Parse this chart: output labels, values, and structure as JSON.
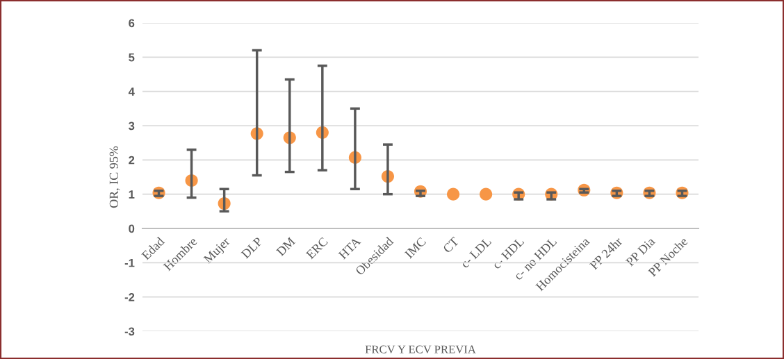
{
  "chart_data": {
    "type": "scatter",
    "xlabel": "FRCV Y ECV PREVIA",
    "ylabel": "OR, IC 95%",
    "categories": [
      "Edad",
      "Hombre",
      "Mujer",
      "DLP",
      "DM",
      "ERC",
      "HTA",
      "Obesidad",
      "IMC",
      "CT",
      "c- LDL",
      "c- HDL",
      "c- no HDL",
      "Homocisteina",
      "PP 24hr",
      "PP Dia",
      "PP Noche"
    ],
    "series": [
      {
        "color": "#f79646",
        "values": [
          1.04,
          1.4,
          0.73,
          2.77,
          2.65,
          2.8,
          2.07,
          1.52,
          1.08,
          1.0,
          1.0,
          1.0,
          1.0,
          1.12,
          1.04,
          1.04,
          1.04
        ],
        "errors": [
          [
            0.95,
            1.1
          ],
          [
            0.9,
            2.3
          ],
          [
            0.5,
            1.15
          ],
          [
            1.55,
            5.2
          ],
          [
            1.65,
            4.35
          ],
          [
            1.7,
            4.75
          ],
          [
            1.15,
            3.5
          ],
          [
            1.0,
            2.45
          ],
          [
            0.95,
            1.1
          ],
          null,
          null,
          [
            0.85,
            1.05
          ],
          [
            0.85,
            1.05
          ],
          [
            1.05,
            1.15
          ],
          [
            0.95,
            1.1
          ],
          [
            0.95,
            1.1
          ],
          [
            0.95,
            1.1
          ]
        ]
      }
    ],
    "ylim": [
      -3,
      6
    ],
    "yticks": [
      -3,
      -2,
      -1,
      0,
      1,
      2,
      3,
      4,
      5,
      6
    ],
    "grid": "y",
    "marker": "circle"
  }
}
